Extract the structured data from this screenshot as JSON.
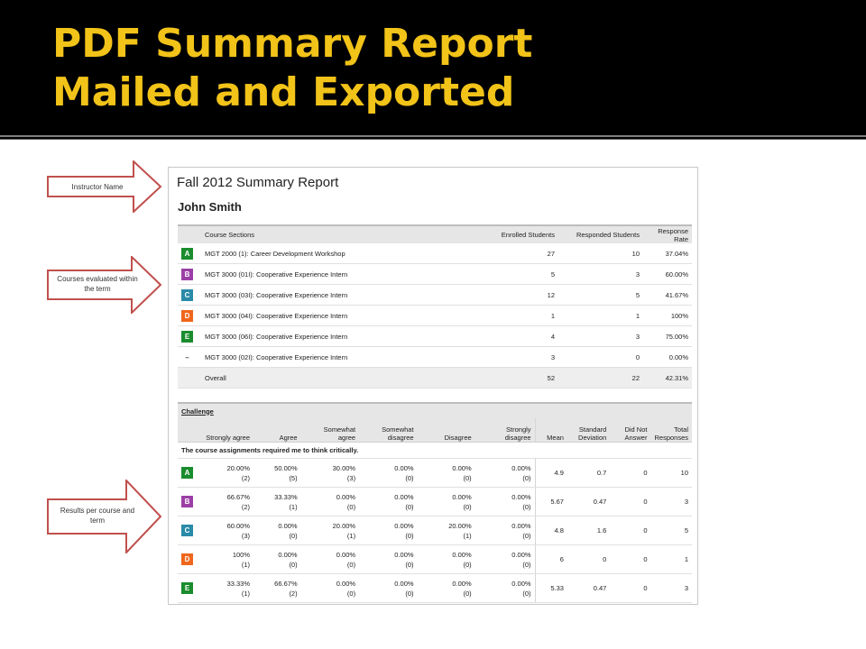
{
  "slide": {
    "title_line1": "PDF Summary Report",
    "title_line2": "Mailed and Exported"
  },
  "callouts": [
    {
      "text": "Instructor Name"
    },
    {
      "text": "Courses evaluated within the term"
    },
    {
      "text": "Results per course and term"
    }
  ],
  "report": {
    "title": "Fall 2012 Summary Report",
    "instructor": "John Smith",
    "sections_table": {
      "headers": [
        "Course Sections",
        "Enrolled Students",
        "Responded Students",
        "Response Rate"
      ],
      "rows": [
        {
          "badge": "A",
          "color": "#1a8c2e",
          "course": "MGT 2000 (1): Career Development Workshop",
          "enrolled": "27",
          "responded": "10",
          "rate": "37.04%"
        },
        {
          "badge": "B",
          "color": "#9b3fa6",
          "course": "MGT 3000 (01I): Cooperative Experience Intern",
          "enrolled": "5",
          "responded": "3",
          "rate": "60.00%"
        },
        {
          "badge": "C",
          "color": "#2a8aa8",
          "course": "MGT 3000 (03I): Cooperative Experience Intern",
          "enrolled": "12",
          "responded": "5",
          "rate": "41.67%"
        },
        {
          "badge": "D",
          "color": "#f0661c",
          "course": "MGT 3000 (04I): Cooperative Experience Intern",
          "enrolled": "1",
          "responded": "1",
          "rate": "100%"
        },
        {
          "badge": "E",
          "color": "#1a8c2e",
          "course": "MGT 3000 (06I): Cooperative Experience Intern",
          "enrolled": "4",
          "responded": "3",
          "rate": "75.00%"
        },
        {
          "badge": "–",
          "color": "",
          "course": "MGT 3000 (02I): Cooperative Experience Intern",
          "enrolled": "3",
          "responded": "0",
          "rate": "0.00%"
        }
      ],
      "overall": {
        "label": "Overall",
        "enrolled": "52",
        "responded": "22",
        "rate": "42.31%"
      }
    },
    "challenge_table": {
      "section": "Challenge",
      "headers": [
        "Strongly agree",
        "Agree",
        "Somewhat agree",
        "Somewhat disagree",
        "Disagree",
        "Strongly disagree",
        "Mean",
        "Standard Deviation",
        "Did Not Answer",
        "Total Responses"
      ],
      "question": "The course assignments required me to think critically.",
      "rows": [
        {
          "badge": "A",
          "color": "#1a8c2e",
          "pcts": [
            "20.00%",
            "50.00%",
            "30.00%",
            "0.00%",
            "0.00%",
            "0.00%"
          ],
          "counts": [
            "(2)",
            "(5)",
            "(3)",
            "(0)",
            "(0)",
            "(0)"
          ],
          "mean": "4.9",
          "sd": "0.7",
          "dna": "0",
          "total": "10"
        },
        {
          "badge": "B",
          "color": "#9b3fa6",
          "pcts": [
            "66.67%",
            "33.33%",
            "0.00%",
            "0.00%",
            "0.00%",
            "0.00%"
          ],
          "counts": [
            "(2)",
            "(1)",
            "(0)",
            "(0)",
            "(0)",
            "(0)"
          ],
          "mean": "5.67",
          "sd": "0.47",
          "dna": "0",
          "total": "3"
        },
        {
          "badge": "C",
          "color": "#2a8aa8",
          "pcts": [
            "60.00%",
            "0.00%",
            "20.00%",
            "0.00%",
            "20.00%",
            "0.00%"
          ],
          "counts": [
            "(3)",
            "(0)",
            "(1)",
            "(0)",
            "(1)",
            "(0)"
          ],
          "mean": "4.8",
          "sd": "1.6",
          "dna": "0",
          "total": "5"
        },
        {
          "badge": "D",
          "color": "#f0661c",
          "pcts": [
            "100%",
            "0.00%",
            "0.00%",
            "0.00%",
            "0.00%",
            "0.00%"
          ],
          "counts": [
            "(1)",
            "(0)",
            "(0)",
            "(0)",
            "(0)",
            "(0)"
          ],
          "mean": "6",
          "sd": "0",
          "dna": "0",
          "total": "1"
        },
        {
          "badge": "E",
          "color": "#1a8c2e",
          "pcts": [
            "33.33%",
            "66.67%",
            "0.00%",
            "0.00%",
            "0.00%",
            "0.00%"
          ],
          "counts": [
            "(1)",
            "(2)",
            "(0)",
            "(0)",
            "(0)",
            "(0)"
          ],
          "mean": "5.33",
          "sd": "0.47",
          "dna": "0",
          "total": "3"
        }
      ]
    }
  }
}
